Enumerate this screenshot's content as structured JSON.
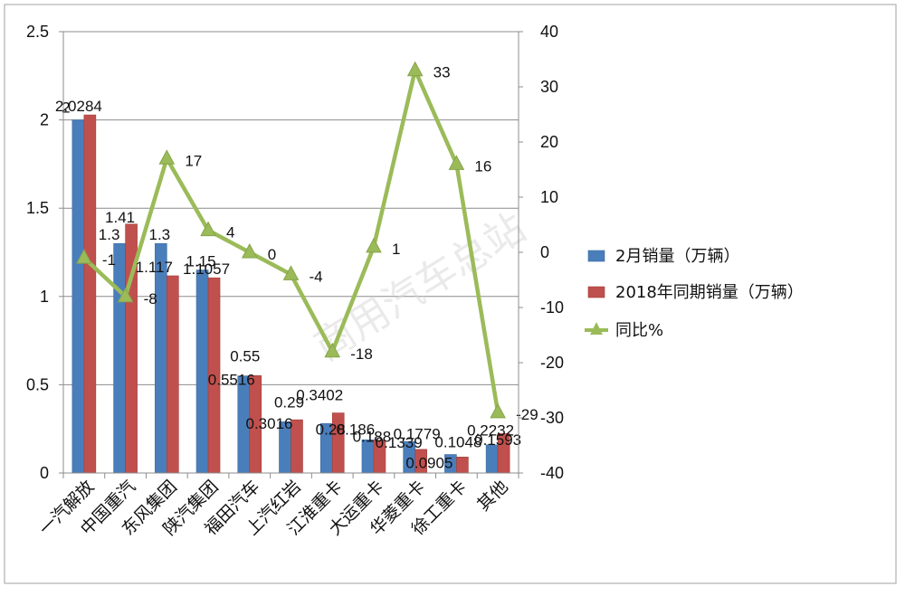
{
  "chart_data": {
    "type": "bar",
    "categories": [
      "一汽解放",
      "中国重汽",
      "东风集团",
      "陕汽集团",
      "福田汽车",
      "上汽红岩",
      "江淮重卡",
      "大运重卡",
      "华菱重卡",
      "徐工重卡",
      "其他"
    ],
    "series": [
      {
        "name": "2月销量（万辆）",
        "type": "bar",
        "axis": "left",
        "color": "#4a7ebb",
        "values": [
          2,
          1.3,
          1.3,
          1.15,
          0.55,
          0.29,
          0.28,
          0.188,
          0.1779,
          0.1048,
          0.1593
        ],
        "labels": [
          "2",
          "1.3",
          "1.3",
          "1.15",
          "0.55",
          "0.29",
          "0.28",
          "0.188",
          "0.1779",
          "0.1048",
          "0.1593"
        ]
      },
      {
        "name": "2018年同期销量（万辆）",
        "type": "bar",
        "axis": "left",
        "color": "#c0504d",
        "values": [
          2.0284,
          1.41,
          1.117,
          1.1057,
          0.5516,
          0.3016,
          0.3402,
          0.186,
          0.1339,
          0.0905,
          0.2232
        ],
        "labels": [
          "2.0284",
          "1.41",
          "1.117",
          "1.1057",
          "0.5516",
          "0.3016",
          "0.3402",
          "0.186",
          "0.1339",
          "0.0905",
          "0.2232"
        ]
      },
      {
        "name": "同比%",
        "type": "line",
        "axis": "right",
        "color": "#9bbb59",
        "values": [
          -1,
          -8,
          17,
          4,
          0,
          -4,
          -18,
          1,
          33,
          16,
          -29
        ],
        "labels": [
          "-1",
          "-8",
          "17",
          "4",
          "0",
          "-4",
          "-18",
          "1",
          "33",
          "16",
          "-29"
        ]
      }
    ],
    "y_left": {
      "min": 0,
      "max": 2.5,
      "ticks": [
        "0",
        "0.5",
        "1",
        "1.5",
        "2",
        "2.5"
      ]
    },
    "y_right": {
      "min": -40,
      "max": 40,
      "ticks": [
        "-40",
        "-30",
        "-20",
        "-10",
        "0",
        "10",
        "20",
        "30",
        "40"
      ]
    },
    "grid": true,
    "legend_position": "right",
    "watermark": "商用汽车总站"
  }
}
